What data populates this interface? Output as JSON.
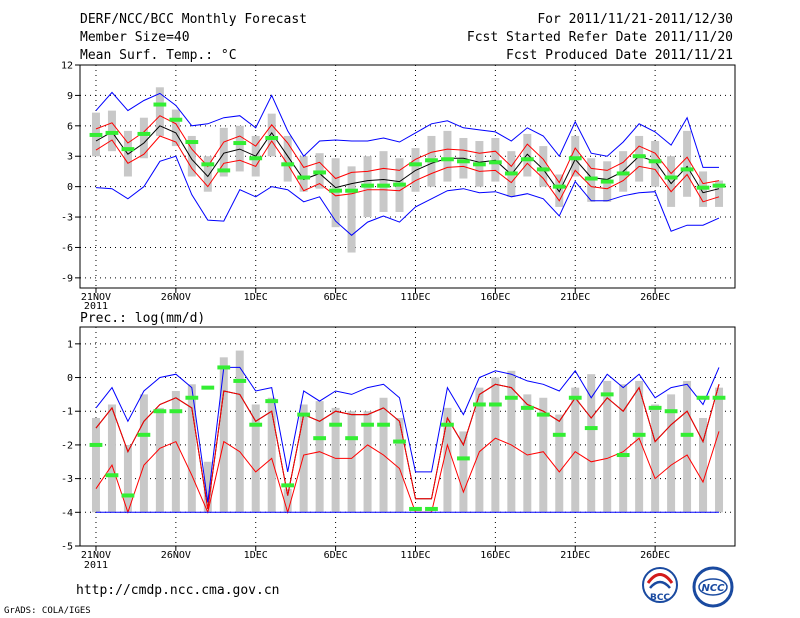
{
  "header": {
    "title_left": "DERF/NCC/BCC Monthly Forecast",
    "member_size": "Member Size=40",
    "variable": "Mean Surf. Temp.: °C",
    "period": "For 2011/11/21-2011/12/30",
    "started": "Fcst Started Refer Date 2011/11/20",
    "produced": "Fcst Produced Date 2011/11/21"
  },
  "footer": {
    "url": "http://cmdp.ncc.cma.gov.cn",
    "grads": "GrADS: COLA/IGES",
    "logo1_text": "BCC",
    "logo2_text": "NCC"
  },
  "colors": {
    "mean": "#000000",
    "spread": "#ff0000",
    "envelope": "#0000ff",
    "box": "#c8c8c8",
    "marker": "#33ee33",
    "grid": "#000000"
  },
  "chart_data": [
    {
      "type": "line",
      "title": "Mean Surf. Temp.: °C",
      "ylabel": "°C",
      "ylim": [
        -10,
        12
      ],
      "yticks": [
        -9,
        -6,
        -3,
        0,
        3,
        6,
        9,
        12
      ],
      "ytick_labels": [
        "-9",
        "-6",
        "-3",
        "0",
        "3",
        "6",
        "9",
        "12"
      ],
      "x_tick_days": [
        1,
        6,
        11,
        16,
        21,
        26,
        31,
        36
      ],
      "x_tick_labels": [
        "21NOV",
        "26NOV",
        "1DEC",
        "6DEC",
        "11DEC",
        "16DEC",
        "21DEC",
        "26DEC"
      ],
      "x_year_label": "2011",
      "x": [
        1,
        2,
        3,
        4,
        5,
        6,
        7,
        8,
        9,
        10,
        11,
        12,
        13,
        14,
        15,
        16,
        17,
        18,
        19,
        20,
        21,
        22,
        23,
        24,
        25,
        26,
        27,
        28,
        29,
        30,
        31,
        32,
        33,
        34,
        35,
        36,
        37,
        38,
        39,
        40
      ],
      "series": [
        {
          "name": "ensemble mean",
          "values": [
            4.5,
            5.4,
            3.2,
            4.3,
            6.0,
            5.3,
            2.7,
            1.0,
            3.3,
            3.7,
            3.0,
            5.3,
            3.0,
            0.7,
            1.3,
            -0.1,
            0.3,
            0.6,
            0.7,
            0.5,
            1.6,
            2.3,
            2.8,
            2.8,
            2.4,
            2.6,
            1.2,
            3.2,
            1.7,
            -0.5,
            2.7,
            0.9,
            0.7,
            1.5,
            3.0,
            2.5,
            0.3,
            2.0,
            -0.6,
            -0.2
          ]
        },
        {
          "name": "upper spread",
          "values": [
            5.7,
            6.3,
            4.3,
            5.4,
            7.0,
            6.2,
            3.7,
            2.0,
            4.4,
            5.0,
            4.0,
            6.1,
            4.3,
            1.9,
            2.4,
            0.8,
            1.4,
            1.5,
            1.8,
            1.6,
            2.7,
            3.4,
            3.7,
            3.6,
            3.3,
            3.5,
            2.0,
            4.2,
            2.7,
            0.4,
            3.8,
            1.8,
            1.6,
            2.4,
            4.0,
            3.3,
            1.3,
            2.9,
            0.3,
            0.6
          ]
        },
        {
          "name": "lower spread",
          "values": [
            3.6,
            4.6,
            2.3,
            3.2,
            5.0,
            4.4,
            1.8,
            0.0,
            2.3,
            2.6,
            2.0,
            4.5,
            2.2,
            -0.4,
            0.3,
            -0.9,
            -0.7,
            -0.3,
            -0.3,
            -0.4,
            0.6,
            1.3,
            1.9,
            2.0,
            1.5,
            1.6,
            0.4,
            2.3,
            0.8,
            -1.4,
            1.6,
            0.0,
            -0.2,
            0.6,
            2.0,
            1.7,
            -0.5,
            1.2,
            -1.5,
            -1.0
          ]
        },
        {
          "name": "upper envelope",
          "values": [
            7.5,
            9.3,
            7.5,
            8.5,
            9.2,
            8.0,
            6.0,
            6.2,
            6.8,
            7.0,
            5.8,
            9.0,
            5.5,
            3.0,
            4.5,
            4.6,
            4.5,
            4.5,
            4.8,
            4.4,
            5.3,
            6.2,
            6.5,
            5.8,
            5.6,
            5.4,
            4.5,
            5.8,
            5.0,
            3.0,
            6.4,
            3.3,
            3.0,
            4.4,
            6.2,
            5.4,
            4.1,
            6.8,
            1.9,
            1.9
          ]
        },
        {
          "name": "lower envelope",
          "values": [
            -0.1,
            -0.2,
            -1.2,
            0.0,
            2.5,
            3.0,
            -0.8,
            -3.3,
            -3.4,
            -0.3,
            -1.0,
            0.0,
            -0.3,
            -1.5,
            -1.0,
            -3.4,
            -4.8,
            -3.5,
            -2.9,
            -3.5,
            -2.0,
            -1.2,
            -0.4,
            -0.2,
            -0.6,
            -0.5,
            -1.0,
            -0.7,
            -1.2,
            -2.9,
            0.5,
            -1.4,
            -1.4,
            -0.9,
            -0.6,
            -0.5,
            -4.4,
            -3.8,
            -3.8,
            -3.1
          ]
        }
      ],
      "box_ranges": [
        [
          3.0,
          7.3
        ],
        [
          3.5,
          7.5
        ],
        [
          1.0,
          5.5
        ],
        [
          2.8,
          6.8
        ],
        [
          5.0,
          9.8
        ],
        [
          4.0,
          7.6
        ],
        [
          1.0,
          5.0
        ],
        [
          -0.5,
          3.0
        ],
        [
          1.0,
          5.8
        ],
        [
          1.5,
          6.0
        ],
        [
          1.0,
          5.0
        ],
        [
          3.0,
          7.2
        ],
        [
          0.5,
          5.0
        ],
        [
          -0.5,
          3.0
        ],
        [
          -0.2,
          3.3
        ],
        [
          -4.0,
          2.8
        ],
        [
          -6.5,
          2.0
        ],
        [
          -3.0,
          3.0
        ],
        [
          -2.5,
          3.5
        ],
        [
          -2.5,
          2.8
        ],
        [
          -0.5,
          3.8
        ],
        [
          0.0,
          5.0
        ],
        [
          0.5,
          5.5
        ],
        [
          0.8,
          4.8
        ],
        [
          0.0,
          4.5
        ],
        [
          0.5,
          4.8
        ],
        [
          -1.0,
          3.5
        ],
        [
          1.0,
          5.2
        ],
        [
          0.0,
          4.0
        ],
        [
          -2.0,
          1.2
        ],
        [
          1.0,
          5.0
        ],
        [
          -1.5,
          2.8
        ],
        [
          -1.5,
          2.5
        ],
        [
          -0.5,
          3.5
        ],
        [
          0.5,
          5.0
        ],
        [
          0.0,
          4.5
        ],
        [
          -2.0,
          3.0
        ],
        [
          -1.0,
          5.5
        ],
        [
          -2.0,
          1.5
        ],
        [
          -2.0,
          0.6
        ]
      ],
      "markers": [
        5.1,
        5.3,
        3.7,
        5.2,
        8.1,
        6.6,
        4.4,
        2.2,
        1.6,
        4.3,
        2.8,
        4.8,
        2.2,
        0.9,
        1.4,
        -0.4,
        -0.4,
        0.1,
        0.1,
        0.2,
        2.2,
        2.6,
        2.7,
        2.5,
        2.2,
        2.4,
        1.3,
        2.7,
        1.7,
        0.0,
        2.8,
        0.8,
        0.5,
        1.3,
        3.0,
        2.5,
        0.9,
        1.7,
        -0.1,
        0.1
      ]
    },
    {
      "type": "line",
      "title": "Prec.: log(mm/d)",
      "ylabel": "log(mm/d)",
      "ylim": [
        -5,
        1.5
      ],
      "yticks": [
        -5,
        -4,
        -3,
        -2,
        -1,
        0,
        1
      ],
      "ytick_labels": [
        "-5",
        "-4",
        "-3",
        "-2",
        "-1",
        "0",
        "1"
      ],
      "x_tick_days": [
        1,
        6,
        11,
        16,
        21,
        26,
        31,
        36
      ],
      "x_tick_labels": [
        "21NOV",
        "26NOV",
        "1DEC",
        "6DEC",
        "11DEC",
        "16DEC",
        "21DEC",
        "26DEC"
      ],
      "x_year_label": "2011",
      "x": [
        1,
        2,
        3,
        4,
        5,
        6,
        7,
        8,
        9,
        10,
        11,
        12,
        13,
        14,
        15,
        16,
        17,
        18,
        19,
        20,
        21,
        22,
        23,
        24,
        25,
        26,
        27,
        28,
        29,
        30,
        31,
        32,
        33,
        34,
        35,
        36,
        37,
        38,
        39,
        40
      ],
      "series": [
        {
          "name": "ensemble mean",
          "values": [
            -1.5,
            -0.9,
            -2.2,
            -1.3,
            -0.8,
            -0.6,
            -0.9,
            -3.9,
            -0.4,
            -0.5,
            -1.3,
            -1.0,
            -3.5,
            -1.1,
            -1.3,
            -1.0,
            -1.1,
            -1.1,
            -0.9,
            -1.3,
            -3.6,
            -3.6,
            -1.2,
            -2.0,
            -0.5,
            -0.2,
            -0.3,
            -0.8,
            -1.0,
            -1.3,
            -0.6,
            -1.2,
            -0.6,
            -1.0,
            -0.3,
            -1.9,
            -1.4,
            -1.0,
            -1.9,
            -0.2
          ]
        },
        {
          "name": "upper spread",
          "values": [
            -1.5,
            -0.9,
            -2.2,
            -1.3,
            -0.8,
            -0.6,
            -0.9,
            -3.9,
            -0.4,
            -0.5,
            -1.3,
            -1.0,
            -3.5,
            -1.1,
            -1.3,
            -1.0,
            -1.1,
            -1.1,
            -0.9,
            -1.3,
            -3.6,
            -3.6,
            -1.2,
            -2.0,
            -0.5,
            -0.2,
            -0.3,
            -0.8,
            -1.0,
            -1.3,
            -0.6,
            -1.2,
            -0.6,
            -1.0,
            -0.3,
            -1.9,
            -1.4,
            -1.0,
            -1.9,
            -0.2
          ]
        },
        {
          "name": "lower spread",
          "values": [
            -3.3,
            -2.6,
            -4.0,
            -2.6,
            -2.1,
            -1.9,
            -2.9,
            -4.0,
            -1.9,
            -2.2,
            -2.8,
            -2.4,
            -4.0,
            -2.3,
            -2.2,
            -2.4,
            -2.4,
            -2.0,
            -2.3,
            -2.7,
            -4.0,
            -4.0,
            -2.0,
            -3.4,
            -2.2,
            -1.8,
            -2.0,
            -2.3,
            -2.2,
            -2.8,
            -2.2,
            -2.5,
            -2.4,
            -2.2,
            -1.8,
            -3.0,
            -2.6,
            -2.3,
            -3.1,
            -1.6
          ]
        },
        {
          "name": "upper envelope",
          "values": [
            -0.9,
            -0.3,
            -1.3,
            -0.4,
            0.0,
            0.1,
            -0.3,
            -3.7,
            0.3,
            0.3,
            -0.4,
            -0.3,
            -2.8,
            -0.4,
            -0.7,
            -0.4,
            -0.5,
            -0.3,
            -0.2,
            -0.6,
            -2.8,
            -2.8,
            -0.3,
            -1.1,
            0.0,
            0.2,
            0.1,
            -0.1,
            -0.2,
            -0.4,
            0.2,
            -0.6,
            0.1,
            -0.3,
            0.1,
            -0.6,
            -0.3,
            -0.2,
            -0.8,
            0.3
          ]
        },
        {
          "name": "lower envelope",
          "values": [
            -4.0,
            -4.0,
            -4.0,
            -4.0,
            -4.0,
            -4.0,
            -4.0,
            -4.0,
            -4.0,
            -4.0,
            -4.0,
            -4.0,
            -4.0,
            -4.0,
            -4.0,
            -4.0,
            -4.0,
            -4.0,
            -4.0,
            -4.0,
            -4.0,
            -4.0,
            -4.0,
            -4.0,
            -4.0,
            -4.0,
            -4.0,
            -4.0,
            -4.0,
            -4.0,
            -4.0,
            -4.0,
            -4.0,
            -4.0,
            -4.0,
            -4.0,
            -4.0,
            -4.0,
            -4.0,
            -4.0
          ]
        }
      ],
      "box_ranges": [
        [
          -4.0,
          -1.2
        ],
        [
          -4.0,
          -0.8
        ],
        [
          -4.0,
          -2.0
        ],
        [
          -4.0,
          -0.5
        ],
        [
          -4.0,
          -0.9
        ],
        [
          -4.0,
          -0.4
        ],
        [
          -4.0,
          -0.2
        ],
        [
          -4.0,
          -2.5
        ],
        [
          -4.0,
          0.6
        ],
        [
          -4.0,
          0.8
        ],
        [
          -4.0,
          -0.8
        ],
        [
          -4.0,
          -0.6
        ],
        [
          -4.0,
          -3.3
        ],
        [
          -4.0,
          -0.8
        ],
        [
          -4.0,
          -0.7
        ],
        [
          -4.0,
          -0.9
        ],
        [
          -4.0,
          -1.0
        ],
        [
          -4.0,
          -1.0
        ],
        [
          -4.0,
          -0.6
        ],
        [
          -4.0,
          -1.2
        ],
        [
          -3.9,
          -3.9
        ],
        [
          -3.9,
          -3.9
        ],
        [
          -4.0,
          -0.9
        ],
        [
          -4.0,
          -1.6
        ],
        [
          -4.0,
          -0.3
        ],
        [
          -4.0,
          0.0
        ],
        [
          -4.0,
          0.2
        ],
        [
          -4.0,
          -0.5
        ],
        [
          -4.0,
          -0.6
        ],
        [
          -4.0,
          -1.1
        ],
        [
          -4.0,
          -0.3
        ],
        [
          -4.0,
          0.1
        ],
        [
          -4.0,
          -0.1
        ],
        [
          -4.0,
          -0.2
        ],
        [
          -4.0,
          -0.1
        ],
        [
          -4.0,
          -0.8
        ],
        [
          -4.0,
          -0.5
        ],
        [
          -4.0,
          -0.1
        ],
        [
          -4.0,
          -1.2
        ],
        [
          -4.0,
          -0.3
        ]
      ],
      "markers": [
        -2.0,
        -2.9,
        -3.5,
        -1.7,
        -1.0,
        -1.0,
        -0.6,
        -0.3,
        0.3,
        -0.1,
        -1.4,
        -0.7,
        -3.2,
        -1.1,
        -1.8,
        -1.4,
        -1.8,
        -1.4,
        -1.4,
        -1.9,
        -3.9,
        -3.9,
        -1.4,
        -2.4,
        -0.8,
        -0.8,
        -0.6,
        -0.9,
        -1.1,
        -1.7,
        -0.6,
        -1.5,
        -0.5,
        -2.3,
        -1.7,
        -0.9,
        -1.0,
        -1.7,
        -0.6,
        -0.6
      ]
    }
  ]
}
